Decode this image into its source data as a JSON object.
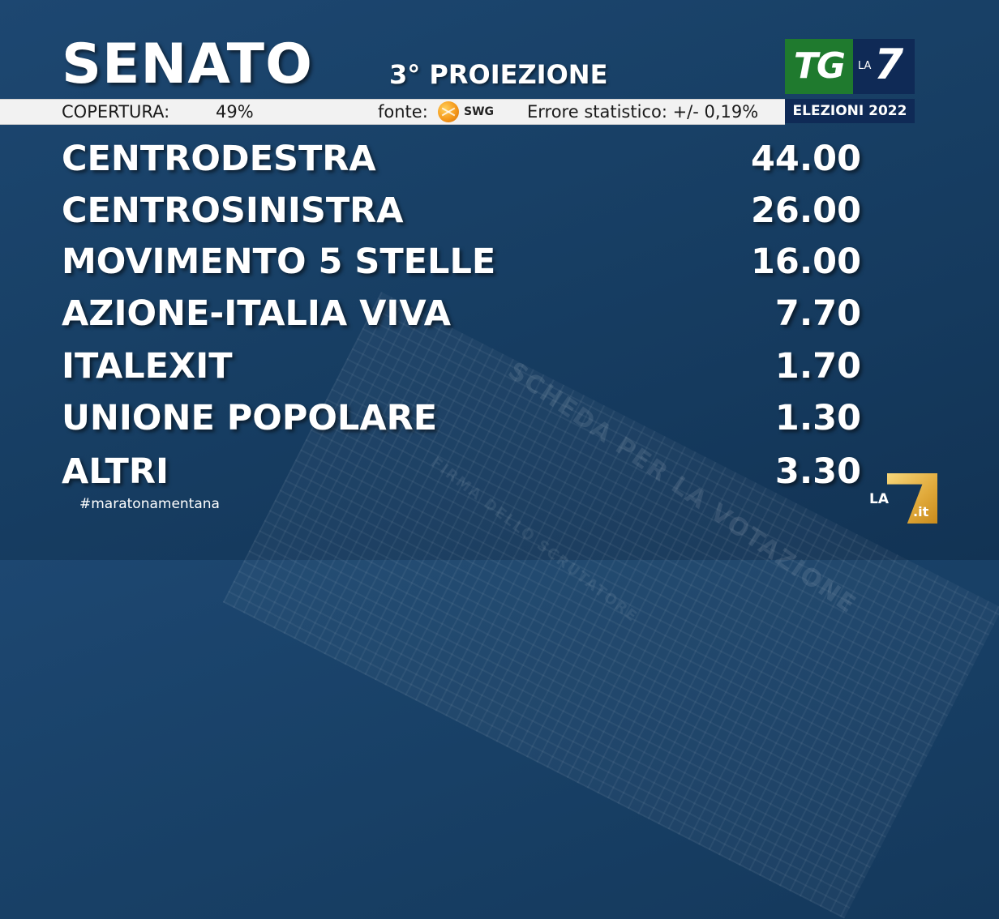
{
  "header": {
    "title": "SENATO",
    "subtitle": "3° PROIEZIONE"
  },
  "infobar": {
    "coverage_label": "COPERTURA:",
    "coverage_value": "49%",
    "source_label": "fonte:",
    "source_logo_text": "SWG",
    "error_text": "Errore statistico: +/- 0,19%"
  },
  "brand": {
    "tg": "TG",
    "la": "LA",
    "seven": "7",
    "elezioni": "ELEZIONI 2022"
  },
  "results": [
    {
      "party": "CENTRODESTRA",
      "value": "44.00"
    },
    {
      "party": "CENTROSINISTRA",
      "value": "26.00"
    },
    {
      "party": "MOVIMENTO 5 STELLE",
      "value": "16.00"
    },
    {
      "party": "AZIONE-ITALIA VIVA",
      "value": "7.70"
    },
    {
      "party": "ITALEXIT",
      "value": "1.70"
    },
    {
      "party": "UNIONE POPOLARE",
      "value": "1.30"
    },
    {
      "party": "ALTRI",
      "value": "3.30"
    }
  ],
  "footer": {
    "hashtag": "#maratonamentana"
  },
  "corner_logo": {
    "la": "LA",
    "it": ".it"
  },
  "background": {
    "ballot_text": "SCHEDA PER LA VOTAZIONE",
    "ballot_text2": "FIRMA DELLO SCRUTATORE"
  },
  "colors": {
    "background": "#184066",
    "infobar": "#f2f2f2",
    "tg_green": "#1f7a2e",
    "la7_navy": "#0f2a56",
    "swg_orange": "#f59a1c"
  }
}
